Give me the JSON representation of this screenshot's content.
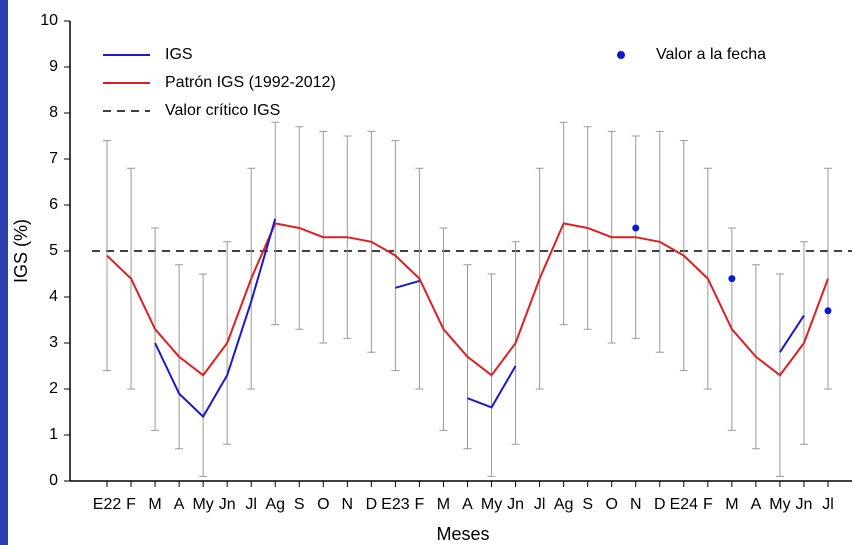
{
  "chart_data": {
    "type": "line",
    "xlabel": "Meses",
    "ylabel": "IGS (%)",
    "categories": [
      "E22",
      "F",
      "M",
      "A",
      "My",
      "Jn",
      "Jl",
      "Ag",
      "S",
      "O",
      "N",
      "D",
      "E23",
      "F",
      "M",
      "A",
      "My",
      "Jn",
      "Jl",
      "Ag",
      "S",
      "O",
      "N",
      "D",
      "E24",
      "F",
      "M",
      "A",
      "My",
      "Jn",
      "Jl"
    ],
    "ylim": [
      0,
      10
    ],
    "yticks": [
      0,
      1,
      2,
      3,
      4,
      5,
      6,
      7,
      8,
      9,
      10
    ],
    "legend": "upper left",
    "series": [
      {
        "name": "IGS",
        "kind": "line",
        "color": "#1a1acc",
        "values": [
          null,
          null,
          3.0,
          1.9,
          1.4,
          2.3,
          3.9,
          5.7,
          null,
          null,
          null,
          null,
          4.2,
          4.35,
          null,
          1.8,
          1.6,
          2.5,
          null,
          null,
          null,
          null,
          null,
          null,
          null,
          null,
          null,
          null,
          2.8,
          3.6,
          null
        ]
      },
      {
        "name": "Patrón IGS (1992-2012)",
        "kind": "line",
        "color": "#dd2020",
        "error_color": "#999999",
        "values": [
          4.9,
          4.4,
          3.3,
          2.7,
          2.3,
          3.0,
          4.4,
          5.6,
          5.5,
          5.3,
          5.3,
          5.2,
          4.9,
          4.4,
          3.3,
          2.7,
          2.3,
          3.0,
          4.4,
          5.6,
          5.5,
          5.3,
          5.3,
          5.2,
          4.9,
          4.4,
          3.3,
          2.7,
          2.3,
          3.0,
          4.4
        ],
        "errors": [
          2.5,
          2.4,
          2.2,
          2.0,
          2.2,
          2.2,
          2.4,
          2.2,
          2.2,
          2.3,
          2.2,
          2.4,
          2.5,
          2.4,
          2.2,
          2.0,
          2.2,
          2.2,
          2.4,
          2.2,
          2.2,
          2.3,
          2.2,
          2.4,
          2.5,
          2.4,
          2.2,
          2.0,
          2.2,
          2.2,
          2.4
        ]
      },
      {
        "name": "Valor crítico IGS",
        "kind": "hline",
        "color": "#000000",
        "value": 5
      },
      {
        "name": "Valor a la fecha",
        "kind": "scatter",
        "color": "#0a1ad0",
        "values": [
          null,
          null,
          null,
          null,
          null,
          null,
          null,
          null,
          null,
          null,
          null,
          null,
          null,
          null,
          null,
          null,
          null,
          null,
          null,
          null,
          null,
          null,
          5.5,
          null,
          null,
          null,
          4.4,
          null,
          null,
          null,
          3.7
        ]
      }
    ]
  }
}
